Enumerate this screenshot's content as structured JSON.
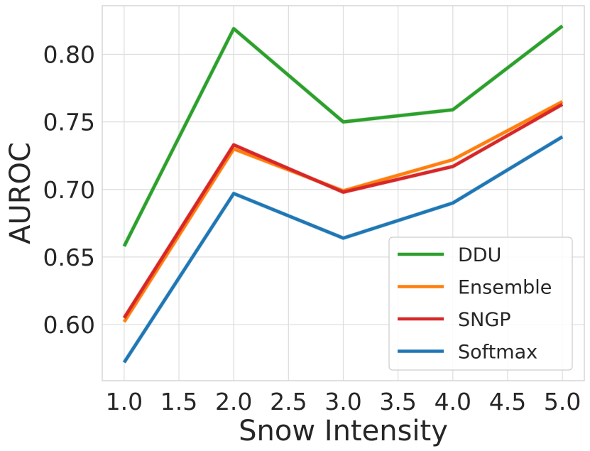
{
  "chart_data": {
    "type": "line",
    "title": "",
    "xlabel": "Snow Intensity",
    "ylabel": "AUROC",
    "xlim": [
      0.8,
      5.2
    ],
    "ylim": [
      0.5585,
      0.836
    ],
    "x": [
      1.0,
      2.0,
      3.0,
      4.0,
      5.0
    ],
    "xticks": [
      1.0,
      1.5,
      2.0,
      2.5,
      3.0,
      3.5,
      4.0,
      4.5,
      5.0
    ],
    "xtick_labels": [
      "1.0",
      "1.5",
      "2.0",
      "2.5",
      "3.0",
      "3.5",
      "4.0",
      "4.5",
      "5.0"
    ],
    "yticks": [
      0.6,
      0.65,
      0.7,
      0.75,
      0.8
    ],
    "ytick_labels": [
      "0.60",
      "0.65",
      "0.70",
      "0.75",
      "0.80"
    ],
    "grid": true,
    "legend_position": "bottom-right",
    "series": [
      {
        "name": "DDU",
        "color": "#2ca02c",
        "values": [
          0.658,
          0.819,
          0.75,
          0.759,
          0.821
        ]
      },
      {
        "name": "Ensemble",
        "color": "#ff7f0e",
        "values": [
          0.602,
          0.73,
          0.699,
          0.722,
          0.765
        ]
      },
      {
        "name": "SNGP",
        "color": "#d62728",
        "values": [
          0.605,
          0.733,
          0.698,
          0.717,
          0.763
        ]
      },
      {
        "name": "Softmax",
        "color": "#1f77b4",
        "values": [
          0.572,
          0.697,
          0.664,
          0.69,
          0.739
        ]
      }
    ]
  }
}
